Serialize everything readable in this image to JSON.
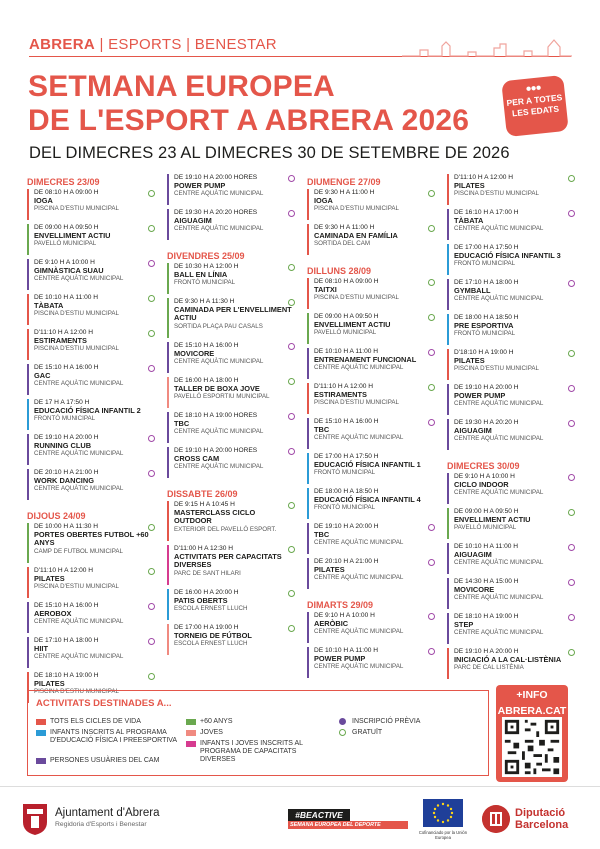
{
  "header": {
    "brand_town": "ABRERA",
    "brand_sep": "|",
    "brand_dept": "ESPORTS | BENESTAR",
    "title_line1": "SETMANA EUROPEA",
    "title_line2": "DE L'ESPORT A ABRERA 2026",
    "subtitle": "DEL DIMECRES 23 AL DIMECRES 30 DE SETEMBRE DE 2026",
    "badge_line1": "PER A TOTES",
    "badge_line2": "LES EDATS"
  },
  "colors": {
    "accent": "#e4564a",
    "all": "#e4564a",
    "kids": "#2b9bd6",
    "cam": "#6a4a9c",
    "plus60": "#6aa84f",
    "youth": "#f08a80",
    "cap": "#d63b8f",
    "registration": "#a14aa8",
    "free": "#6aa84f"
  },
  "columns": [
    [
      {
        "day": "DIMECRES 23/09"
      },
      {
        "time": "DE 08:10 H A 09:00 H",
        "name": "IOGA",
        "place": "PISCINA D'ESTIU MUNICIPAL",
        "cat": "all",
        "mark": "free"
      },
      {
        "time": "DE 09:00 H A 09:50 H",
        "name": "ENVELLIMENT ACTIU",
        "place": "PAVELLÓ MUNICIPAL",
        "cat": "plus60",
        "mark": "free"
      },
      {
        "time": "DE 9:10 H A 10:00 H",
        "name": "GIMNÀSTICA SUAU",
        "place": "CENTRE AQUÀTIC MUNICIPAL",
        "cat": "cam",
        "mark": "reg"
      },
      {
        "time": "DE 10:10 H A 11:00 H",
        "name": "TÀBATA",
        "place": "PISCINA D'ESTIU MUNICIPAL",
        "cat": "all",
        "mark": "free"
      },
      {
        "time": "D'11:10 H A 12:00 H",
        "name": "ESTIRAMENTS",
        "place": "PISCINA D'ESTIU MUNICIPAL",
        "cat": "all",
        "mark": "free"
      },
      {
        "time": "DE 15:10 H A 16:00 H",
        "name": "GAC",
        "place": "CENTRE AQUÀTIC MUNICIPAL",
        "cat": "cam",
        "mark": "reg"
      },
      {
        "time": "DE 17 H A 17:50 H",
        "name": "EDUCACIÓ FÍSICA INFANTIL 2",
        "place": "FRONTÓ MUNICIPAL",
        "cat": "kids",
        "mark": ""
      },
      {
        "time": "DE 19:10 H A 20:00 H",
        "name": "RUNNING CLUB",
        "place": "CENTRE AQUÀTIC MUNICIPAL",
        "cat": "cam",
        "mark": "reg"
      },
      {
        "time": "DE 20:10 H A 21:00 H",
        "name": "WORK DANCING",
        "place": "CENTRE AQUÀTIC MUNICIPAL",
        "cat": "cam",
        "mark": "reg"
      },
      {
        "day": "DIJOUS 24/09",
        "gap": true
      },
      {
        "time": "DE 10:00 H A 11:30 H",
        "name": "PORTES OBERTES FUTBOL +60 ANYS",
        "place": "CAMP DE FUTBOL MUNICIPAL",
        "cat": "plus60",
        "mark": "free",
        "tall": true
      },
      {
        "time": "D'11:10 H A 12:00 H",
        "name": "PILATES",
        "place": "PISCINA D'ESTIU MUNICIPAL",
        "cat": "all",
        "mark": "free"
      },
      {
        "time": "DE 15:10 H A 16:00 H",
        "name": "AEROBOX",
        "place": "CENTRE AQUÀTIC MUNICIPAL",
        "cat": "cam",
        "mark": "reg"
      },
      {
        "time": "DE 17:10 H A 18:00 H",
        "name": "HIIT",
        "place": "CENTRE AQUÀTIC MUNICIPAL",
        "cat": "cam",
        "mark": "reg"
      },
      {
        "time": "DE 18:10 H A 19:00 H",
        "name": "PILATES",
        "place": "PISCINA D'ESTIU MUNICIPAL",
        "cat": "all",
        "mark": "free"
      }
    ],
    [
      {
        "time": "DE 19:10 H A 20:00 HORES",
        "name": "POWER PUMP",
        "place": "CENTRE AQUÀTIC MUNICIPAL",
        "cat": "cam",
        "mark": "reg"
      },
      {
        "time": "DE 19:30 H A 20:20 HORES",
        "name": "AIGUAGIM",
        "place": "CENTRE AQUÀTIC MUNICIPAL",
        "cat": "cam",
        "mark": "reg"
      },
      {
        "day": "DIVENDRES 25/09",
        "gap": true
      },
      {
        "time": "DE 10:30 H A 12:00 H",
        "name": "BALL EN LÍNIA",
        "place": "FRONTÓ MUNICIPAL",
        "cat": "plus60",
        "mark": "free"
      },
      {
        "time": "DE 9:30 H A 11:30 H",
        "name": "CAMINADA PER L'ENVELLIMENT ACTIU",
        "place": "SORTIDA PLAÇA PAU CASALS",
        "cat": "plus60",
        "mark": "free",
        "tall": true
      },
      {
        "time": "DE 15:10 H A 16:00 H",
        "name": "MOVICORE",
        "place": "CENTRE AQUÀTIC MUNICIPAL",
        "cat": "cam",
        "mark": "reg"
      },
      {
        "time": "DE 16:00 H A 18:00 H",
        "name": "TALLER DE BOXA JOVE",
        "place": "PAVELLÓ ESPORTIU MUNICIPAL",
        "cat": "youth",
        "mark": "free"
      },
      {
        "time": "DE 18:10 H A 19:00 HORES",
        "name": "TBC",
        "place": "CENTRE AQUÀTIC MUNICIPAL",
        "cat": "cam",
        "mark": "reg"
      },
      {
        "time": "DE 19:10 H A 20:00 HORES",
        "name": "CROSS CAM",
        "place": "CENTRE AQUÀTIC MUNICIPAL",
        "cat": "cam",
        "mark": "reg"
      },
      {
        "day": "DISSABTE 26/09",
        "gap": true
      },
      {
        "time": "DE 9:15 H A 10:45 H",
        "name": "MASTERCLASS CICLO OUTDOOR",
        "place": "EXTERIOR DEL PAVELLÓ ESPORT.",
        "cat": "all",
        "mark": "free",
        "tall": true
      },
      {
        "time": "D'11:00 H A 12:30 H",
        "name": "ACTIVITATS PER CAPACITATS DIVERSES",
        "place": "PARC DE SANT HILARI",
        "cat": "cap",
        "mark": "free",
        "tall": true
      },
      {
        "time": "DE 16:00 H A 20:00 H",
        "name": "PATIS OBERTS",
        "place": "ESCOLA ERNEST LLUCH",
        "cat": "kids",
        "mark": "free"
      },
      {
        "time": "DE 17:00 H A 19:00 H",
        "name": "TORNEIG DE FÚTBOL",
        "place": "ESCOLA ERNEST LLUCH",
        "cat": "youth",
        "mark": "free"
      }
    ],
    [
      {
        "day": "DIUMENGE 27/09"
      },
      {
        "time": "DE 9:30 H A 11:00 H",
        "name": "IOGA",
        "place": "PISCINA D'ESTIU MUNICIPAL",
        "cat": "all",
        "mark": "free"
      },
      {
        "time": "DE 9:30 H A 11:00 H",
        "name": "CAMINADA EN FAMÍLIA",
        "place": "SORTIDA DEL CAM",
        "cat": "all",
        "mark": "free"
      },
      {
        "day": "DILLUNS 28/09",
        "gap": true
      },
      {
        "time": "DE 08:10 H A 09:00 H",
        "name": "TAITXI",
        "place": "PISCINA D'ESTIU MUNICIPAL",
        "cat": "all",
        "mark": "free"
      },
      {
        "time": "DE 09:00 H A 09:50 H",
        "name": "ENVELLIMENT ACTIU",
        "place": "PAVELLÓ MUNICIPAL",
        "cat": "plus60",
        "mark": "free"
      },
      {
        "time": "DE 10:10 H A 11:00 H",
        "name": "ENTRENAMENT FUNCIONAL",
        "place": "CENTRE AQUÀTIC MUNICIPAL",
        "cat": "cam",
        "mark": "reg"
      },
      {
        "time": "D'11:10 H A 12:00 H",
        "name": "ESTIRAMENTS",
        "place": "PISCINA D'ESTIU MUNICIPAL",
        "cat": "all",
        "mark": "free"
      },
      {
        "time": "DE 15:10 H A 16:00 H",
        "name": "TBC",
        "place": "CENTRE AQUÀTIC MUNICIPAL",
        "cat": "cam",
        "mark": "reg"
      },
      {
        "time": "DE 17:00 H A 17:50 H",
        "name": "EDUCACIÓ FÍSICA INFANTIL 1",
        "place": "FRONTÓ MUNICIPAL",
        "cat": "kids",
        "mark": ""
      },
      {
        "time": "DE 18:00 H A 18:50 H",
        "name": "EDUCACIÓ FÍSICA INFANTIL 4",
        "place": "FRONTÓ MUNICIPAL",
        "cat": "kids",
        "mark": ""
      },
      {
        "time": "DE 19:10 H A 20:00 H",
        "name": "TBC",
        "place": "CENTRE AQUÀTIC MUNICIPAL",
        "cat": "cam",
        "mark": "reg"
      },
      {
        "time": "DE 20:10 H A 21:00 H",
        "name": "PILATES",
        "place": "CENTRE AQUÀTIC MUNICIPAL",
        "cat": "cam",
        "mark": "reg"
      },
      {
        "day": "DIMARTS 29/09",
        "gap": true
      },
      {
        "time": "DE 9:10 H A 10:00 H",
        "name": "AERÒBIC",
        "place": "CENTRE AQUÀTIC MUNICIPAL",
        "cat": "cam",
        "mark": "reg"
      },
      {
        "time": "DE 10:10 H A 11:00 H",
        "name": "POWER PUMP",
        "place": "CENTRE AQUÀTIC MUNICIPAL",
        "cat": "cam",
        "mark": "reg"
      }
    ],
    [
      {
        "time": "D'11:10 H A 12:00 H",
        "name": "PILATES",
        "place": "PISCINA D'ESTIU MUNICIPAL",
        "cat": "all",
        "mark": "free"
      },
      {
        "time": "DE 16:10 H A 17:00 H",
        "name": "TÀBATA",
        "place": "CENTRE AQUÀTIC MUNICIPAL",
        "cat": "cam",
        "mark": "reg"
      },
      {
        "time": "DE 17:00 H A 17:50 H",
        "name": "EDUCACIÓ FÍSICA INFANTIL 3",
        "place": "FRONTÓ MUNICIPAL",
        "cat": "kids",
        "mark": ""
      },
      {
        "time": "DE 17:10 H A 18:00 H",
        "name": "GYMBALL",
        "place": "CENTRE AQUÀTIC MUNICIPAL",
        "cat": "cam",
        "mark": "reg"
      },
      {
        "time": "DE 18:00 H A 18:50 H",
        "name": "PRE ESPORTIVA",
        "place": "FRONTÓ MUNICIPAL",
        "cat": "kids",
        "mark": ""
      },
      {
        "time": "D'18:10 H A 19:00 H",
        "name": "PILATES",
        "place": "PISCINA D'ESTIU MUNICIPAL",
        "cat": "all",
        "mark": "free"
      },
      {
        "time": "DE 19:10 H A 20:00 H",
        "name": "POWER PUMP",
        "place": "CENTRE AQUÀTIC MUNICIPAL",
        "cat": "cam",
        "mark": "reg"
      },
      {
        "time": "DE 19:30 H A 20:20 H",
        "name": "AIGUAGIM",
        "place": "CENTRE AQUÀTIC MUNICIPAL",
        "cat": "cam",
        "mark": "reg"
      },
      {
        "day": "DIMECRES 30/09",
        "gap": true
      },
      {
        "time": "DE 9:10 H A 10:00 H",
        "name": "CICLO INDOOR",
        "place": "CENTRE AQUÀTIC MUNICIPAL",
        "cat": "cam",
        "mark": "reg"
      },
      {
        "time": "DE 09:00 H A 09:50 H",
        "name": "ENVELLIMENT ACTIU",
        "place": "PAVELLÓ MUNICIPAL",
        "cat": "plus60",
        "mark": "free"
      },
      {
        "time": "DE 10:10 H A 11:00 H",
        "name": "AIGUAGIM",
        "place": "CENTRE AQUÀTIC MUNICIPAL",
        "cat": "cam",
        "mark": "reg"
      },
      {
        "time": "DE 14:30 H A 15:00 H",
        "name": "MOVICORE",
        "place": "CENTRE AQUÀTIC MUNICIPAL",
        "cat": "cam",
        "mark": "reg"
      },
      {
        "time": "DE 18:10 H A 19:00 H",
        "name": "STEP",
        "place": "CENTRE AQUÀTIC MUNICIPAL",
        "cat": "cam",
        "mark": "reg"
      },
      {
        "time": "DE 19:10 H A 20:00 H",
        "name": "INICIACIÓ A LA CAL·LISTÈNIA",
        "place": "PARC DE CAL LISTÈNIA",
        "cat": "all",
        "mark": "free"
      }
    ]
  ],
  "legend": {
    "title": "ACTIVITATS DESTINADES A...",
    "all": "TOTS ELS CICLES DE VIDA",
    "kids": "INFANTS INSCRITS AL PROGRAMA D'EDUCACIÓ FÍSICA I PREESPORTIVA",
    "cam": "PERSONES USUÀRIES DEL CAM",
    "plus60": "+60 ANYS",
    "youth": "JOVES",
    "cap": "INFANTS I JOVES INSCRITS AL PROGRAMA DE CAPACITATS DIVERSES",
    "registration": "INSCRIPCIÓ PRÈVIA",
    "free": "GRATUÏT"
  },
  "info": {
    "line1": "+INFO",
    "line2": "ABRERA.CAT"
  },
  "footer": {
    "ajuntament": "Ajuntament d'Abrera",
    "regidoria": "Regidoria d'Esports i Benestar",
    "beactive": "#BEACTIVE",
    "beactive_sub": "SEMANA EUROPEA DEL DEPORTE",
    "eu_text": "Cofinanciado por la Unión Europea",
    "diba_line1": "Diputació",
    "diba_line2": "Barcelona"
  }
}
